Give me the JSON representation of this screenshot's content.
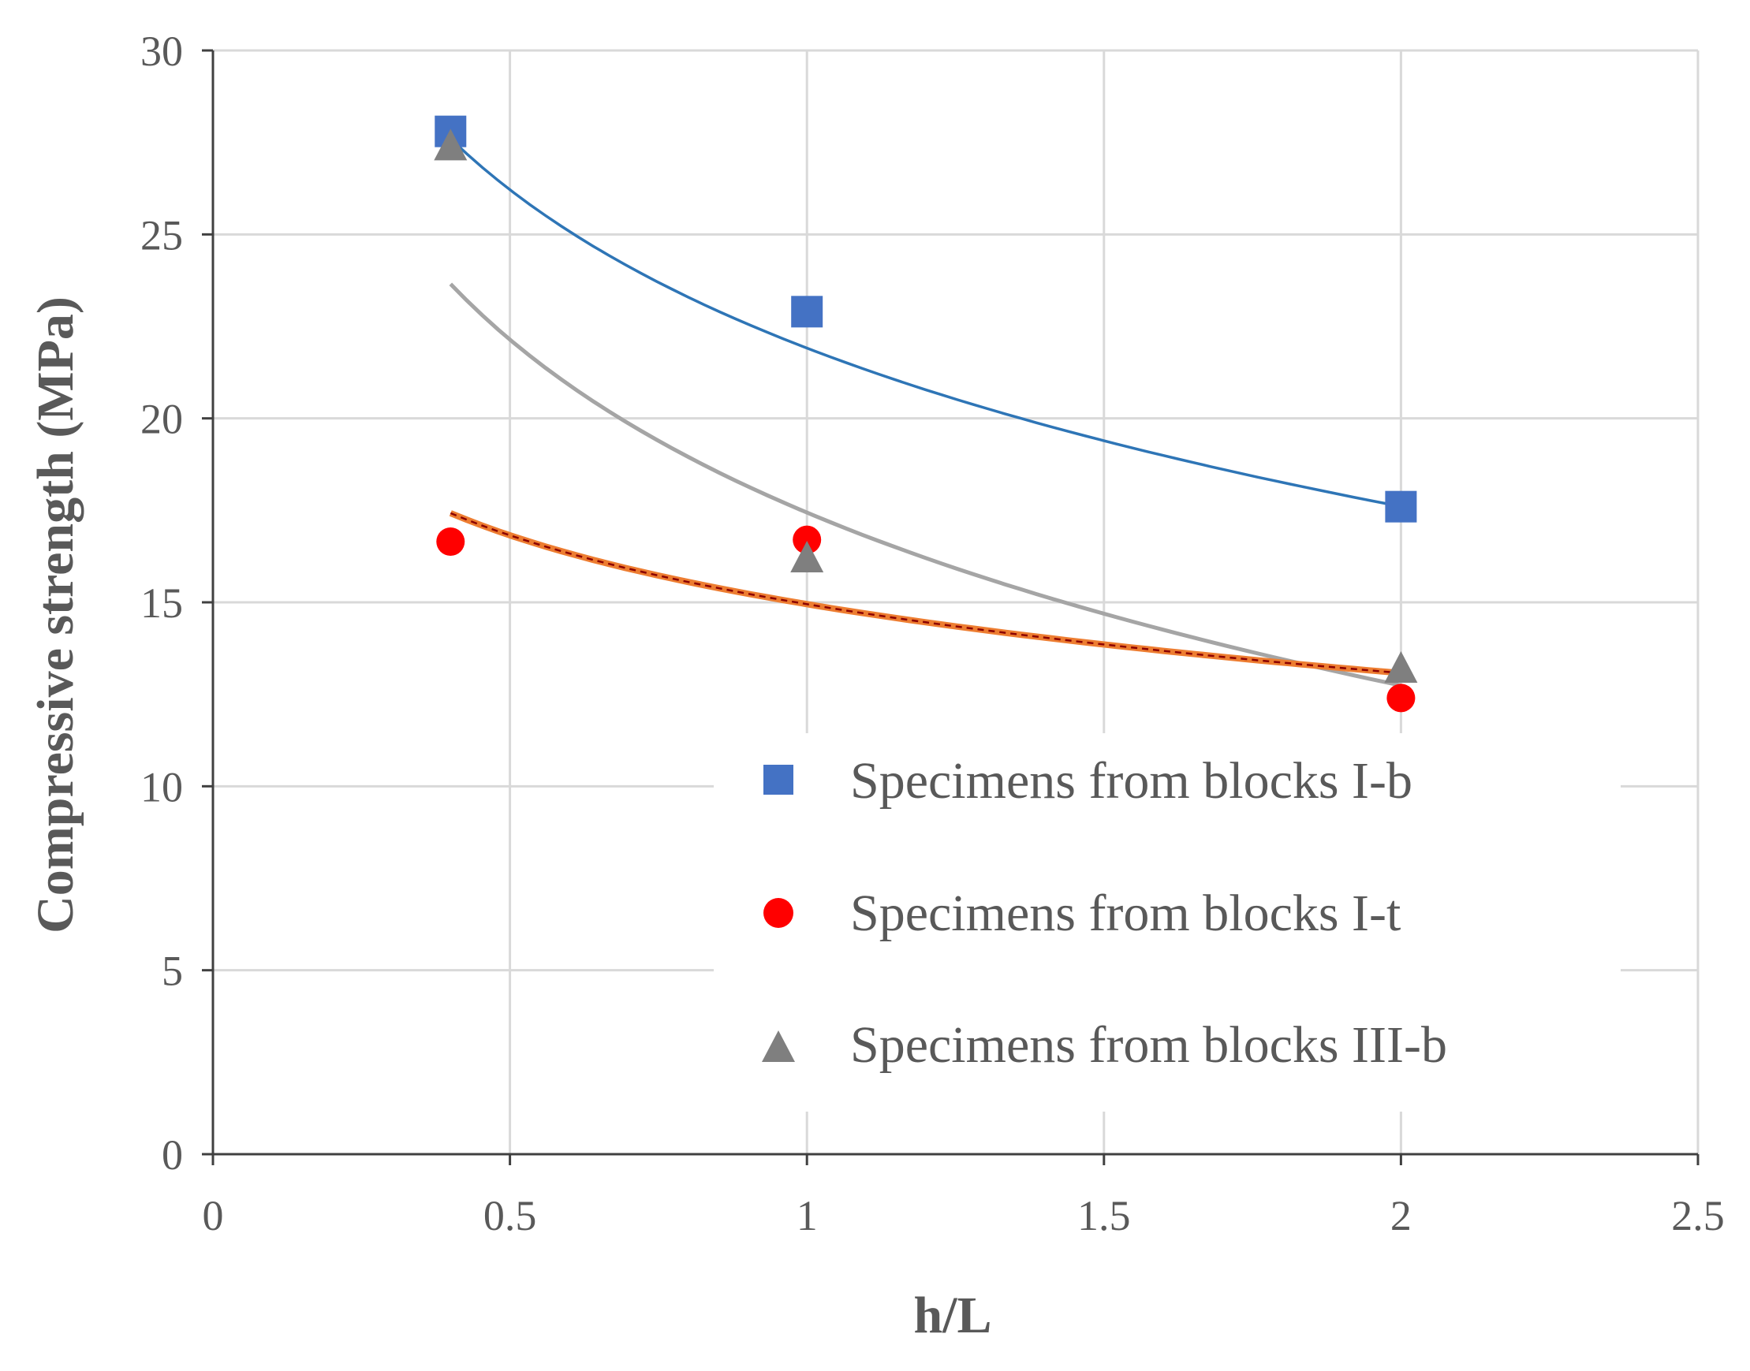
{
  "chart_data": {
    "type": "scatter",
    "title": "",
    "xlabel": "h/L",
    "ylabel": "Compressive strength (MPa)",
    "xlim": [
      0,
      2.5
    ],
    "ylim": [
      0,
      30
    ],
    "xticks": [
      0,
      0.5,
      1,
      1.5,
      2,
      2.5
    ],
    "xtick_labels": [
      "0",
      "0.5",
      "1",
      "1.5",
      "2",
      "2.5"
    ],
    "yticks": [
      0,
      5,
      10,
      15,
      20,
      25,
      30
    ],
    "ytick_labels": [
      "0",
      "5",
      "10",
      "15",
      "20",
      "25",
      "30"
    ],
    "grid": true,
    "legend_position": "lower-right",
    "series": [
      {
        "name": "Specimens from blocks I-b",
        "marker": "square",
        "color": "#4472C4",
        "trend_color": "#2E75B6",
        "x": [
          0.4,
          1,
          2
        ],
        "y": [
          27.8,
          22.9,
          17.6
        ],
        "trend": {
          "type": "logarithmic",
          "a": 21.91,
          "b": -6.21,
          "x_range": [
            0.4,
            2
          ]
        }
      },
      {
        "name": "Specimens from blocks I-t",
        "marker": "circle",
        "color": "#FF0000",
        "trend_color": "#ED7D31",
        "x": [
          0.4,
          1,
          2
        ],
        "y": [
          16.65,
          16.7,
          12.4
        ],
        "trend": {
          "type": "logarithmic",
          "a": 14.95,
          "b": -2.7,
          "x_range": [
            0.4,
            2
          ]
        }
      },
      {
        "name": "Specimens from blocks III-b",
        "marker": "triangle",
        "color": "#7F7F7F",
        "trend_color": "#A5A5A5",
        "x": [
          0.4,
          1,
          2
        ],
        "y": [
          27.4,
          16.2,
          13.2
        ],
        "trend": {
          "type": "logarithmic",
          "a": 17.44,
          "b": -6.78,
          "x_range": [
            0.4,
            2
          ]
        }
      }
    ]
  }
}
